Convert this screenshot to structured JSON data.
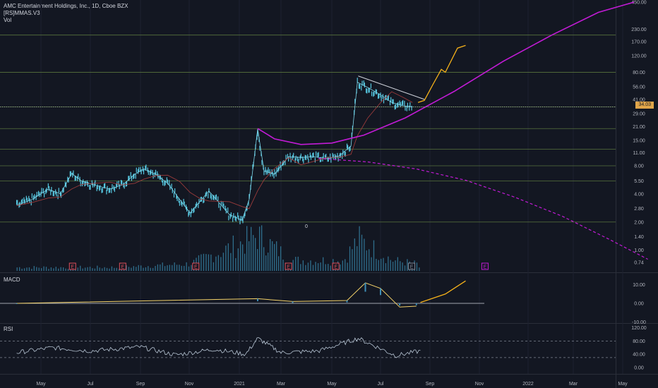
{
  "header": {
    "title": "AMC Entertainment Holdings, Inc., 1D, Cboe BZX",
    "indicator": "[RS]MMAS.V3",
    "volume_label": "Vol"
  },
  "price_badge": "34.03",
  "zero_label": "0",
  "earnings_label": "E",
  "panes": {
    "macd_label": "MACD",
    "rsi_label": "RSI"
  },
  "colors": {
    "background": "#131722",
    "candle_teal": "#56c7e0",
    "trend_magenta": "#c21bd6",
    "forecast_orange": "#f5b11a",
    "grid_green": "#58733d",
    "earnings_red": "#e0505c"
  },
  "chart_data": [
    {
      "type": "line",
      "title": "AMC Entertainment Holdings, Inc., 1D, Cboe BZX",
      "scale": "log",
      "x_ticks": [
        "May",
        "Jul",
        "Sep",
        "Nov",
        "2021",
        "Mar",
        "May",
        "Jul",
        "Sep",
        "Nov",
        "2022",
        "Mar",
        "May"
      ],
      "y_ticks": [
        "450.00",
        "230.00",
        "170.00",
        "120.00",
        "80.00",
        "56.00",
        "41.00",
        "29.00",
        "21.00",
        "15.00",
        "11.00",
        "8.00",
        "5.50",
        "4.00",
        "2.80",
        "2.00",
        "1.40",
        "1.00",
        "0.74"
      ],
      "price_series": [
        [
          "2020-04-01",
          3.0
        ],
        [
          "2020-04-20",
          3.5
        ],
        [
          "2020-05-10",
          4.5
        ],
        [
          "2020-05-25",
          4.0
        ],
        [
          "2020-06-08",
          6.6
        ],
        [
          "2020-06-20",
          5.5
        ],
        [
          "2020-07-05",
          5.0
        ],
        [
          "2020-07-25",
          4.5
        ],
        [
          "2020-08-10",
          5.0
        ],
        [
          "2020-08-25",
          6.5
        ],
        [
          "2020-09-05",
          7.4
        ],
        [
          "2020-09-20",
          6.5
        ],
        [
          "2020-10-05",
          5.2
        ],
        [
          "2020-10-20",
          3.5
        ],
        [
          "2020-11-02",
          2.5
        ],
        [
          "2020-11-15",
          3.4
        ],
        [
          "2020-11-25",
          4.3
        ],
        [
          "2020-12-05",
          3.4
        ],
        [
          "2020-12-20",
          2.4
        ],
        [
          "2021-01-05",
          2.1
        ],
        [
          "2021-01-15",
          3.5
        ],
        [
          "2021-01-27",
          19.9
        ],
        [
          "2021-02-05",
          7.0
        ],
        [
          "2021-02-20",
          6.5
        ],
        [
          "2021-03-10",
          10.0
        ],
        [
          "2021-03-25",
          9.8
        ],
        [
          "2021-04-10",
          10.0
        ],
        [
          "2021-04-25",
          9.5
        ],
        [
          "2021-05-10",
          10.2
        ],
        [
          "2021-05-25",
          13.0
        ],
        [
          "2021-06-02",
          62.5
        ],
        [
          "2021-06-15",
          55.0
        ],
        [
          "2021-07-01",
          46.0
        ],
        [
          "2021-07-15",
          38.0
        ],
        [
          "2021-07-30",
          35.0
        ],
        [
          "2021-08-10",
          34.0
        ]
      ],
      "volume_series": [
        [
          "2020-05-01",
          1
        ],
        [
          "2020-08-01",
          1
        ],
        [
          "2020-11-01",
          2
        ],
        [
          "2021-01-27",
          10
        ],
        [
          "2021-03-15",
          3
        ],
        [
          "2021-05-15",
          3
        ],
        [
          "2021-06-03",
          9
        ],
        [
          "2021-07-15",
          3
        ],
        [
          "2021-08-15",
          2
        ]
      ],
      "earnings_dates": [
        "2020-06-09",
        "2020-08-10",
        "2020-11-09",
        "2021-03-10",
        "2021-05-06",
        "2021-08-09",
        "2021-11-08"
      ],
      "horizontal_levels": [
        200,
        80,
        34.03,
        20,
        12,
        8,
        5.5,
        2.0
      ],
      "trend_curve": [
        [
          "2021-01-27",
          20
        ],
        [
          "2021-02-20",
          15.5
        ],
        [
          "2021-03-25",
          13.5
        ],
        [
          "2021-05-01",
          14
        ],
        [
          "2021-06-10",
          17
        ],
        [
          "2021-08-01",
          26
        ],
        [
          "2021-10-01",
          50
        ],
        [
          "2021-12-01",
          105
        ],
        [
          "2022-02-01",
          200
        ],
        [
          "2022-04-01",
          350
        ],
        [
          "2022-05-15",
          450
        ]
      ],
      "support_curve_dashed": [
        [
          "2021-04-15",
          9.6
        ],
        [
          "2021-06-15",
          8.8
        ],
        [
          "2021-08-15",
          7.4
        ],
        [
          "2021-10-15",
          5.6
        ],
        [
          "2021-12-15",
          3.7
        ],
        [
          "2022-02-15",
          2.3
        ],
        [
          "2022-04-15",
          1.3
        ],
        [
          "2022-06-01",
          0.8
        ]
      ],
      "wedge_upper": [
        [
          "2021-06-03",
          73
        ],
        [
          "2021-08-25",
          41
        ]
      ],
      "forecast_path": [
        [
          "2021-08-17",
          38
        ],
        [
          "2021-08-25",
          40
        ],
        [
          "2021-09-05",
          60
        ],
        [
          "2021-09-15",
          86
        ],
        [
          "2021-09-20",
          80
        ],
        [
          "2021-10-05",
          145
        ],
        [
          "2021-10-15",
          155
        ]
      ]
    },
    {
      "type": "line",
      "title": "MACD",
      "y_ticks": [
        "10.00",
        "0.00",
        "-10.00"
      ],
      "macd": [
        [
          "2020-04-01",
          0
        ],
        [
          "2021-01-27",
          2.5
        ],
        [
          "2021-03-15",
          1
        ],
        [
          "2021-05-20",
          1.5
        ],
        [
          "2021-06-12",
          11
        ],
        [
          "2021-07-01",
          8
        ],
        [
          "2021-07-25",
          -2
        ],
        [
          "2021-08-15",
          -1.5
        ]
      ],
      "forecast": [
        [
          "2021-08-20",
          0.5
        ],
        [
          "2021-09-20",
          5
        ],
        [
          "2021-10-15",
          12
        ]
      ]
    },
    {
      "type": "line",
      "title": "RSI",
      "y_ticks": [
        "120.00",
        "80.00",
        "40.00",
        "0.00"
      ],
      "bands": [
        80,
        30
      ],
      "rsi": [
        [
          "2020-04-01",
          45
        ],
        [
          "2020-05-15",
          60
        ],
        [
          "2020-07-01",
          50
        ],
        [
          "2020-09-01",
          62
        ],
        [
          "2020-10-15",
          38
        ],
        [
          "2020-12-01",
          55
        ],
        [
          "2021-01-10",
          40
        ],
        [
          "2021-01-27",
          88
        ],
        [
          "2021-03-01",
          45
        ],
        [
          "2021-04-15",
          50
        ],
        [
          "2021-06-03",
          88
        ],
        [
          "2021-07-20",
          36
        ],
        [
          "2021-08-20",
          50
        ]
      ]
    }
  ]
}
